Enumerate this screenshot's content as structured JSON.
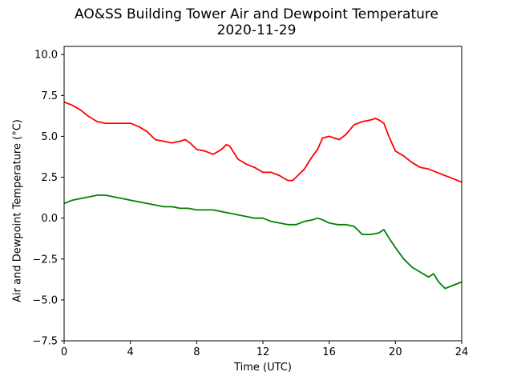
{
  "chart_data": {
    "type": "line",
    "title": "AO&SS Building Tower Air and Dewpoint Temperature",
    "subtitle": "2020-11-29",
    "xlabel": "Time (UTC)",
    "ylabel": "Air and Dewpoint Temperature (°C)",
    "xlim": [
      0,
      24
    ],
    "ylim": [
      -7.5,
      10.5
    ],
    "xticks": [
      0,
      4,
      8,
      12,
      16,
      20,
      24
    ],
    "xtick_labels": [
      "0",
      "4",
      "8",
      "12",
      "16",
      "20",
      "24"
    ],
    "yticks": [
      -7.5,
      -5.0,
      -2.5,
      0.0,
      2.5,
      5.0,
      7.5,
      10.0
    ],
    "ytick_labels": [
      "−7.5",
      "−5.0",
      "−2.5",
      "0.0",
      "2.5",
      "5.0",
      "7.5",
      "10.0"
    ],
    "grid": false,
    "series": [
      {
        "color": "#ff0000",
        "x": [
          0,
          0.5,
          1,
          1.5,
          2,
          2.5,
          3,
          3.5,
          4,
          4.5,
          5,
          5.5,
          6,
          6.5,
          7,
          7.3,
          7.6,
          8,
          8.5,
          9,
          9.5,
          9.8,
          10,
          10.5,
          11,
          11.5,
          12,
          12.5,
          13,
          13.5,
          13.8,
          14,
          14.5,
          15,
          15.3,
          15.6,
          16,
          16.3,
          16.6,
          17,
          17.5,
          18,
          18.5,
          18.8,
          19,
          19.3,
          19.6,
          20,
          20.5,
          21,
          21.5,
          22,
          22.5,
          23,
          23.5,
          24
        ],
        "values": [
          7.1,
          6.9,
          6.6,
          6.2,
          5.9,
          5.8,
          5.8,
          5.8,
          5.8,
          5.6,
          5.3,
          4.8,
          4.7,
          4.6,
          4.7,
          4.8,
          4.6,
          4.2,
          4.1,
          3.9,
          4.2,
          4.5,
          4.4,
          3.6,
          3.3,
          3.1,
          2.8,
          2.8,
          2.6,
          2.3,
          2.3,
          2.5,
          3.0,
          3.8,
          4.2,
          4.9,
          5.0,
          4.9,
          4.8,
          5.1,
          5.7,
          5.9,
          6.0,
          6.1,
          6.0,
          5.8,
          5.0,
          4.1,
          3.8,
          3.4,
          3.1,
          3.0,
          2.8,
          2.6,
          2.4,
          2.2
        ]
      },
      {
        "color": "#008000",
        "x": [
          0,
          0.5,
          1,
          1.5,
          2,
          2.5,
          3,
          3.5,
          4,
          4.5,
          5,
          5.5,
          6,
          6.5,
          7,
          7.5,
          8,
          8.5,
          9,
          9.5,
          10,
          10.5,
          11,
          11.5,
          12,
          12.5,
          13,
          13.5,
          14,
          14.5,
          15,
          15.3,
          15.6,
          16,
          16.5,
          17,
          17.5,
          18,
          18.5,
          19,
          19.3,
          19.6,
          20,
          20.5,
          21,
          21.5,
          22,
          22.3,
          22.6,
          23,
          23.5,
          24
        ],
        "values": [
          0.9,
          1.1,
          1.2,
          1.3,
          1.4,
          1.4,
          1.3,
          1.2,
          1.1,
          1.0,
          0.9,
          0.8,
          0.7,
          0.7,
          0.6,
          0.6,
          0.5,
          0.5,
          0.5,
          0.4,
          0.3,
          0.2,
          0.1,
          0.0,
          0.0,
          -0.2,
          -0.3,
          -0.4,
          -0.4,
          -0.2,
          -0.1,
          0.0,
          -0.1,
          -0.3,
          -0.4,
          -0.4,
          -0.5,
          -1.0,
          -1.0,
          -0.9,
          -0.7,
          -1.2,
          -1.8,
          -2.5,
          -3.0,
          -3.3,
          -3.6,
          -3.4,
          -3.9,
          -4.3,
          -4.1,
          -3.9
        ]
      }
    ]
  }
}
